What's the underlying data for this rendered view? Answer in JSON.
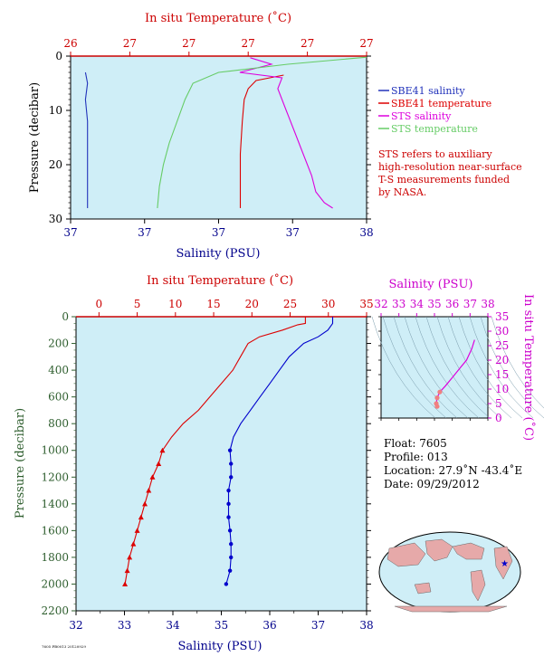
{
  "chart_data": [
    {
      "type": "line",
      "panel": "near-surface",
      "x_top_label": "In situ Temperature (˚C)",
      "x_top_ticks": [
        "26",
        "27",
        "27",
        "27",
        "27",
        "27"
      ],
      "x_top_range": [
        26.0,
        27.5
      ],
      "x_bottom_label": "Salinity (PSU)",
      "x_bottom_ticks": [
        "37",
        "37",
        "37",
        "37",
        "38"
      ],
      "x_bottom_range": [
        36.6,
        38.0
      ],
      "y_label": "Pressure (decibar)",
      "y_ticks": [
        "0",
        "10",
        "20",
        "30"
      ],
      "y_range": [
        0,
        30
      ],
      "y_inverted": true,
      "background": "#cfeef7",
      "legend": [
        {
          "name": "SBE41 salinity",
          "color": "#2233bb"
        },
        {
          "name": "SBE41 temperature",
          "color": "#dd0000"
        },
        {
          "name": "STS salinity",
          "color": "#dd00dd"
        },
        {
          "name": "STS temperature",
          "color": "#66cc66"
        }
      ],
      "note": [
        "STS refers to auxiliary",
        "high-resolution near-surface",
        "T-S measurements funded",
        "by NASA."
      ],
      "series": [
        {
          "name": "SBE41 salinity",
          "axis": "salinity",
          "color": "#2233bb",
          "points": [
            [
              36.67,
              3
            ],
            [
              36.68,
              5
            ],
            [
              36.67,
              8
            ],
            [
              36.68,
              12
            ],
            [
              36.68,
              16
            ],
            [
              36.68,
              20
            ],
            [
              36.68,
              24
            ],
            [
              36.68,
              28
            ]
          ]
        },
        {
          "name": "SBE41 temperature",
          "axis": "temperature",
          "color": "#dd0000",
          "points": [
            [
              27.08,
              3.5
            ],
            [
              26.94,
              4.5
            ],
            [
              26.9,
              6
            ],
            [
              26.88,
              8
            ],
            [
              26.87,
              12
            ],
            [
              26.86,
              18
            ],
            [
              26.86,
              24
            ],
            [
              26.86,
              28
            ]
          ]
        },
        {
          "name": "STS salinity",
          "axis": "salinity",
          "color": "#dd00dd",
          "points": [
            [
              37.45,
              0.3
            ],
            [
              37.55,
              1.5
            ],
            [
              37.4,
              3
            ],
            [
              37.6,
              4
            ],
            [
              37.58,
              6
            ],
            [
              37.62,
              10
            ],
            [
              37.66,
              14
            ],
            [
              37.7,
              18
            ],
            [
              37.74,
              22
            ],
            [
              37.76,
              25
            ],
            [
              37.8,
              27
            ],
            [
              37.84,
              28
            ]
          ]
        },
        {
          "name": "STS temperature",
          "axis": "temperature",
          "color": "#66cc66",
          "points": [
            [
              27.5,
              0.2
            ],
            [
              27.1,
              1.5
            ],
            [
              26.75,
              3
            ],
            [
              26.62,
              5
            ],
            [
              26.58,
              8
            ],
            [
              26.54,
              12
            ],
            [
              26.5,
              16
            ],
            [
              26.47,
              20
            ],
            [
              26.45,
              24
            ],
            [
              26.44,
              28
            ]
          ]
        }
      ]
    },
    {
      "type": "line",
      "panel": "full-profile",
      "x_top_label": "In situ Temperature (˚C)",
      "x_top_ticks": [
        "0",
        "5",
        "10",
        "15",
        "20",
        "25",
        "30",
        "35"
      ],
      "x_top_range": [
        -3,
        35
      ],
      "x_bottom_label": "Salinity (PSU)",
      "x_bottom_ticks": [
        "32",
        "33",
        "34",
        "35",
        "36",
        "37",
        "38"
      ],
      "x_bottom_range": [
        32,
        38
      ],
      "y_label": "Pressure (decibar)",
      "y_ticks": [
        "0",
        "200",
        "400",
        "600",
        "800",
        "1000",
        "1200",
        "1400",
        "1600",
        "1800",
        "2000",
        "2200"
      ],
      "y_range": [
        0,
        2200
      ],
      "y_inverted": true,
      "background": "#cfeef7",
      "series": [
        {
          "name": "Temperature",
          "axis": "temperature",
          "color": "#dd0000",
          "points": [
            [
              27.0,
              0
            ],
            [
              27.0,
              50
            ],
            [
              26.0,
              60
            ],
            [
              24.0,
              100
            ],
            [
              21.0,
              150
            ],
            [
              19.5,
              200
            ],
            [
              18.5,
              300
            ],
            [
              17.5,
              400
            ],
            [
              16.0,
              500
            ],
            [
              14.5,
              600
            ],
            [
              13.0,
              700
            ],
            [
              11.0,
              800
            ],
            [
              9.5,
              900
            ],
            [
              8.3,
              1000
            ],
            [
              7.8,
              1100
            ],
            [
              7.0,
              1200
            ],
            [
              6.5,
              1300
            ],
            [
              6.0,
              1400
            ],
            [
              5.5,
              1500
            ],
            [
              5.0,
              1600
            ],
            [
              4.5,
              1700
            ],
            [
              4.0,
              1800
            ],
            [
              3.7,
              1900
            ],
            [
              3.4,
              2000
            ]
          ]
        },
        {
          "name": "Salinity",
          "axis": "salinity",
          "color": "#0000cc",
          "points": [
            [
              37.3,
              0
            ],
            [
              37.3,
              50
            ],
            [
              37.2,
              100
            ],
            [
              37.0,
              150
            ],
            [
              36.7,
              200
            ],
            [
              36.4,
              300
            ],
            [
              36.2,
              400
            ],
            [
              36.0,
              500
            ],
            [
              35.8,
              600
            ],
            [
              35.6,
              700
            ],
            [
              35.4,
              800
            ],
            [
              35.25,
              900
            ],
            [
              35.18,
              1000
            ],
            [
              35.2,
              1100
            ],
            [
              35.2,
              1200
            ],
            [
              35.15,
              1300
            ],
            [
              35.15,
              1400
            ],
            [
              35.15,
              1500
            ],
            [
              35.18,
              1600
            ],
            [
              35.2,
              1700
            ],
            [
              35.2,
              1800
            ],
            [
              35.18,
              1900
            ],
            [
              35.1,
              2000
            ]
          ]
        }
      ]
    },
    {
      "type": "scatter",
      "panel": "ts-diagram",
      "x_top_label": "Salinity (PSU)",
      "x_top_ticks": [
        "32",
        "33",
        "34",
        "35",
        "36",
        "37",
        "38"
      ],
      "x_range": [
        32,
        38
      ],
      "y_right_label": "In situ Temperature (˚C)",
      "y_right_ticks": [
        "0",
        "5",
        "10",
        "15",
        "20",
        "25",
        "30",
        "35"
      ],
      "y_range": [
        0,
        35
      ],
      "grid": "density contours",
      "series": [
        {
          "name": "T-S",
          "color": "#dd00dd",
          "points": [
            [
              37.25,
              27
            ],
            [
              37.1,
              24
            ],
            [
              36.8,
              20
            ],
            [
              36.4,
              17
            ],
            [
              36.0,
              14
            ],
            [
              35.6,
              11
            ],
            [
              35.3,
              9
            ],
            [
              35.15,
              7
            ],
            [
              35.1,
              5
            ],
            [
              35.15,
              4
            ]
          ]
        }
      ]
    }
  ],
  "float_info": {
    "float": "Float:  7605",
    "profile": "Profile:  013",
    "location": "Location:  27.9˚N  -43.4˚E",
    "date": "Date:  09/29/2012"
  },
  "footer": "7605 PB0013 20120929"
}
